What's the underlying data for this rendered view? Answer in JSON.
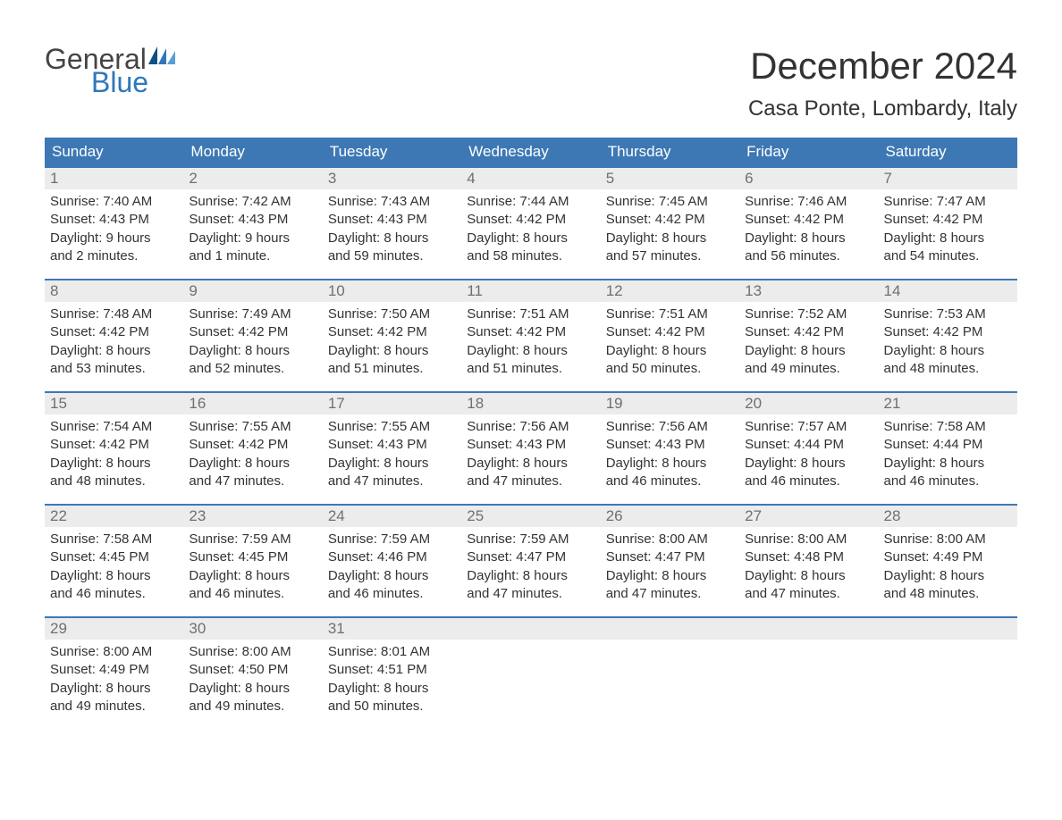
{
  "logo": {
    "general": "General",
    "blue": "Blue"
  },
  "title": "December 2024",
  "location": "Casa Ponte, Lombardy, Italy",
  "colors": {
    "header_bg": "#3d78b4",
    "header_text": "#ffffff",
    "daynum_bg": "#ececec",
    "daynum_text": "#707070",
    "body_text": "#333333",
    "accent_blue": "#2f77bb",
    "week_border": "#3d78b4",
    "page_bg": "#ffffff"
  },
  "typography": {
    "title_fontsize": 42,
    "location_fontsize": 24,
    "weekday_fontsize": 17,
    "daynum_fontsize": 17,
    "body_fontsize": 15,
    "font_family": "Arial"
  },
  "weekdays": [
    "Sunday",
    "Monday",
    "Tuesday",
    "Wednesday",
    "Thursday",
    "Friday",
    "Saturday"
  ],
  "weeks": [
    [
      {
        "n": "1",
        "sunrise": "Sunrise: 7:40 AM",
        "sunset": "Sunset: 4:43 PM",
        "d1": "Daylight: 9 hours",
        "d2": "and 2 minutes."
      },
      {
        "n": "2",
        "sunrise": "Sunrise: 7:42 AM",
        "sunset": "Sunset: 4:43 PM",
        "d1": "Daylight: 9 hours",
        "d2": "and 1 minute."
      },
      {
        "n": "3",
        "sunrise": "Sunrise: 7:43 AM",
        "sunset": "Sunset: 4:43 PM",
        "d1": "Daylight: 8 hours",
        "d2": "and 59 minutes."
      },
      {
        "n": "4",
        "sunrise": "Sunrise: 7:44 AM",
        "sunset": "Sunset: 4:42 PM",
        "d1": "Daylight: 8 hours",
        "d2": "and 58 minutes."
      },
      {
        "n": "5",
        "sunrise": "Sunrise: 7:45 AM",
        "sunset": "Sunset: 4:42 PM",
        "d1": "Daylight: 8 hours",
        "d2": "and 57 minutes."
      },
      {
        "n": "6",
        "sunrise": "Sunrise: 7:46 AM",
        "sunset": "Sunset: 4:42 PM",
        "d1": "Daylight: 8 hours",
        "d2": "and 56 minutes."
      },
      {
        "n": "7",
        "sunrise": "Sunrise: 7:47 AM",
        "sunset": "Sunset: 4:42 PM",
        "d1": "Daylight: 8 hours",
        "d2": "and 54 minutes."
      }
    ],
    [
      {
        "n": "8",
        "sunrise": "Sunrise: 7:48 AM",
        "sunset": "Sunset: 4:42 PM",
        "d1": "Daylight: 8 hours",
        "d2": "and 53 minutes."
      },
      {
        "n": "9",
        "sunrise": "Sunrise: 7:49 AM",
        "sunset": "Sunset: 4:42 PM",
        "d1": "Daylight: 8 hours",
        "d2": "and 52 minutes."
      },
      {
        "n": "10",
        "sunrise": "Sunrise: 7:50 AM",
        "sunset": "Sunset: 4:42 PM",
        "d1": "Daylight: 8 hours",
        "d2": "and 51 minutes."
      },
      {
        "n": "11",
        "sunrise": "Sunrise: 7:51 AM",
        "sunset": "Sunset: 4:42 PM",
        "d1": "Daylight: 8 hours",
        "d2": "and 51 minutes."
      },
      {
        "n": "12",
        "sunrise": "Sunrise: 7:51 AM",
        "sunset": "Sunset: 4:42 PM",
        "d1": "Daylight: 8 hours",
        "d2": "and 50 minutes."
      },
      {
        "n": "13",
        "sunrise": "Sunrise: 7:52 AM",
        "sunset": "Sunset: 4:42 PM",
        "d1": "Daylight: 8 hours",
        "d2": "and 49 minutes."
      },
      {
        "n": "14",
        "sunrise": "Sunrise: 7:53 AM",
        "sunset": "Sunset: 4:42 PM",
        "d1": "Daylight: 8 hours",
        "d2": "and 48 minutes."
      }
    ],
    [
      {
        "n": "15",
        "sunrise": "Sunrise: 7:54 AM",
        "sunset": "Sunset: 4:42 PM",
        "d1": "Daylight: 8 hours",
        "d2": "and 48 minutes."
      },
      {
        "n": "16",
        "sunrise": "Sunrise: 7:55 AM",
        "sunset": "Sunset: 4:42 PM",
        "d1": "Daylight: 8 hours",
        "d2": "and 47 minutes."
      },
      {
        "n": "17",
        "sunrise": "Sunrise: 7:55 AM",
        "sunset": "Sunset: 4:43 PM",
        "d1": "Daylight: 8 hours",
        "d2": "and 47 minutes."
      },
      {
        "n": "18",
        "sunrise": "Sunrise: 7:56 AM",
        "sunset": "Sunset: 4:43 PM",
        "d1": "Daylight: 8 hours",
        "d2": "and 47 minutes."
      },
      {
        "n": "19",
        "sunrise": "Sunrise: 7:56 AM",
        "sunset": "Sunset: 4:43 PM",
        "d1": "Daylight: 8 hours",
        "d2": "and 46 minutes."
      },
      {
        "n": "20",
        "sunrise": "Sunrise: 7:57 AM",
        "sunset": "Sunset: 4:44 PM",
        "d1": "Daylight: 8 hours",
        "d2": "and 46 minutes."
      },
      {
        "n": "21",
        "sunrise": "Sunrise: 7:58 AM",
        "sunset": "Sunset: 4:44 PM",
        "d1": "Daylight: 8 hours",
        "d2": "and 46 minutes."
      }
    ],
    [
      {
        "n": "22",
        "sunrise": "Sunrise: 7:58 AM",
        "sunset": "Sunset: 4:45 PM",
        "d1": "Daylight: 8 hours",
        "d2": "and 46 minutes."
      },
      {
        "n": "23",
        "sunrise": "Sunrise: 7:59 AM",
        "sunset": "Sunset: 4:45 PM",
        "d1": "Daylight: 8 hours",
        "d2": "and 46 minutes."
      },
      {
        "n": "24",
        "sunrise": "Sunrise: 7:59 AM",
        "sunset": "Sunset: 4:46 PM",
        "d1": "Daylight: 8 hours",
        "d2": "and 46 minutes."
      },
      {
        "n": "25",
        "sunrise": "Sunrise: 7:59 AM",
        "sunset": "Sunset: 4:47 PM",
        "d1": "Daylight: 8 hours",
        "d2": "and 47 minutes."
      },
      {
        "n": "26",
        "sunrise": "Sunrise: 8:00 AM",
        "sunset": "Sunset: 4:47 PM",
        "d1": "Daylight: 8 hours",
        "d2": "and 47 minutes."
      },
      {
        "n": "27",
        "sunrise": "Sunrise: 8:00 AM",
        "sunset": "Sunset: 4:48 PM",
        "d1": "Daylight: 8 hours",
        "d2": "and 47 minutes."
      },
      {
        "n": "28",
        "sunrise": "Sunrise: 8:00 AM",
        "sunset": "Sunset: 4:49 PM",
        "d1": "Daylight: 8 hours",
        "d2": "and 48 minutes."
      }
    ],
    [
      {
        "n": "29",
        "sunrise": "Sunrise: 8:00 AM",
        "sunset": "Sunset: 4:49 PM",
        "d1": "Daylight: 8 hours",
        "d2": "and 49 minutes."
      },
      {
        "n": "30",
        "sunrise": "Sunrise: 8:00 AM",
        "sunset": "Sunset: 4:50 PM",
        "d1": "Daylight: 8 hours",
        "d2": "and 49 minutes."
      },
      {
        "n": "31",
        "sunrise": "Sunrise: 8:01 AM",
        "sunset": "Sunset: 4:51 PM",
        "d1": "Daylight: 8 hours",
        "d2": "and 50 minutes."
      },
      {
        "empty": true
      },
      {
        "empty": true
      },
      {
        "empty": true
      },
      {
        "empty": true
      }
    ]
  ]
}
